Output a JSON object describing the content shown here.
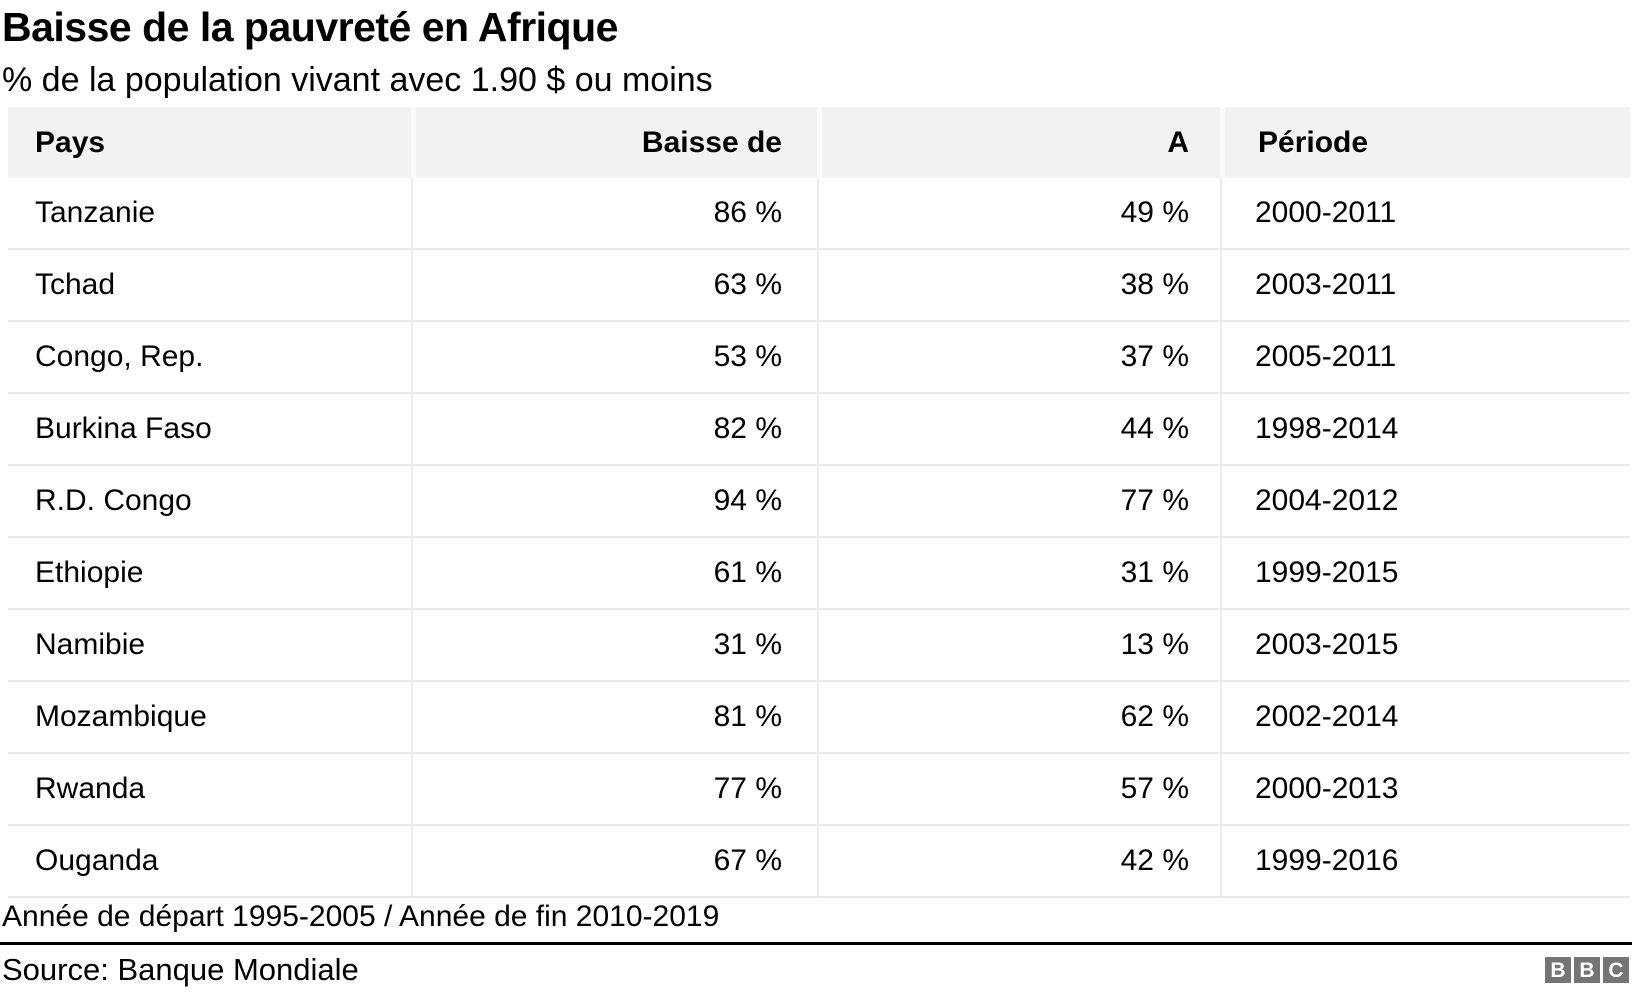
{
  "header": {
    "title": "Baisse de la pauvreté en Afrique",
    "subtitle": "% de la population vivant avec 1.90 $ ou moins"
  },
  "table": {
    "columns": [
      {
        "label": "Pays",
        "align": "left"
      },
      {
        "label": "Baisse de",
        "align": "right"
      },
      {
        "label": "A",
        "align": "right"
      },
      {
        "label": "Période",
        "align": "left"
      }
    ],
    "rows": [
      [
        "Tanzanie",
        "86 %",
        "49 %",
        "2000-2011"
      ],
      [
        "Tchad",
        "63 %",
        "38 %",
        "2003-2011"
      ],
      [
        "Congo, Rep.",
        "53 %",
        "37 %",
        "2005-2011"
      ],
      [
        "Burkina Faso",
        "82 %",
        "44 %",
        "1998-2014"
      ],
      [
        "R.D. Congo",
        "94 %",
        "77 %",
        "2004-2012"
      ],
      [
        "Ethiopie",
        "61 %",
        "31 %",
        "1999-2015"
      ],
      [
        "Namibie",
        "31 %",
        "13 %",
        "2003-2015"
      ],
      [
        "Mozambique",
        "81 %",
        "62 %",
        "2002-2014"
      ],
      [
        "Rwanda",
        "77 %",
        "57 %",
        "2000-2013"
      ],
      [
        "Ouganda",
        "67 %",
        "42 %",
        "1999-2016"
      ]
    ]
  },
  "footer": {
    "note": "Année de départ 1995-2005 / Année de fin 2010-2019",
    "source": "Source: Banque Mondiale",
    "logo_letters": [
      "B",
      "B",
      "C"
    ]
  },
  "colors": {
    "header_bg": "#f2f2f2",
    "row_line": "#e9e9e9",
    "column_line": "#ececec",
    "divider": "#000000",
    "logo_gray": "#757575",
    "text": "#000000"
  },
  "chart_data": {
    "type": "table",
    "title": "Baisse de la pauvreté en Afrique",
    "subtitle": "% de la population vivant avec 1.90 $ ou moins",
    "columns": [
      "Pays",
      "Baisse de",
      "A",
      "Période"
    ],
    "rows": [
      {
        "pays": "Tanzanie",
        "baisse_de_pct": 86,
        "a_pct": 49,
        "periode": "2000-2011"
      },
      {
        "pays": "Tchad",
        "baisse_de_pct": 63,
        "a_pct": 38,
        "periode": "2003-2011"
      },
      {
        "pays": "Congo, Rep.",
        "baisse_de_pct": 53,
        "a_pct": 37,
        "periode": "2005-2011"
      },
      {
        "pays": "Burkina Faso",
        "baisse_de_pct": 82,
        "a_pct": 44,
        "periode": "1998-2014"
      },
      {
        "pays": "R.D. Congo",
        "baisse_de_pct": 94,
        "a_pct": 77,
        "periode": "2004-2012"
      },
      {
        "pays": "Ethiopie",
        "baisse_de_pct": 61,
        "a_pct": 31,
        "periode": "1999-2015"
      },
      {
        "pays": "Namibie",
        "baisse_de_pct": 31,
        "a_pct": 13,
        "periode": "2003-2015"
      },
      {
        "pays": "Mozambique",
        "baisse_de_pct": 81,
        "a_pct": 62,
        "periode": "2002-2014"
      },
      {
        "pays": "Rwanda",
        "baisse_de_pct": 77,
        "a_pct": 57,
        "periode": "2000-2013"
      },
      {
        "pays": "Ouganda",
        "baisse_de_pct": 67,
        "a_pct": 42,
        "periode": "1999-2016"
      }
    ],
    "note": "Année de départ 1995-2005 / Année de fin 2010-2019",
    "source": "Source: Banque Mondiale",
    "layout": {
      "grid": "light-horizontal-and-vertical",
      "header_background": "#f2f2f2",
      "legend_position": "none"
    }
  }
}
